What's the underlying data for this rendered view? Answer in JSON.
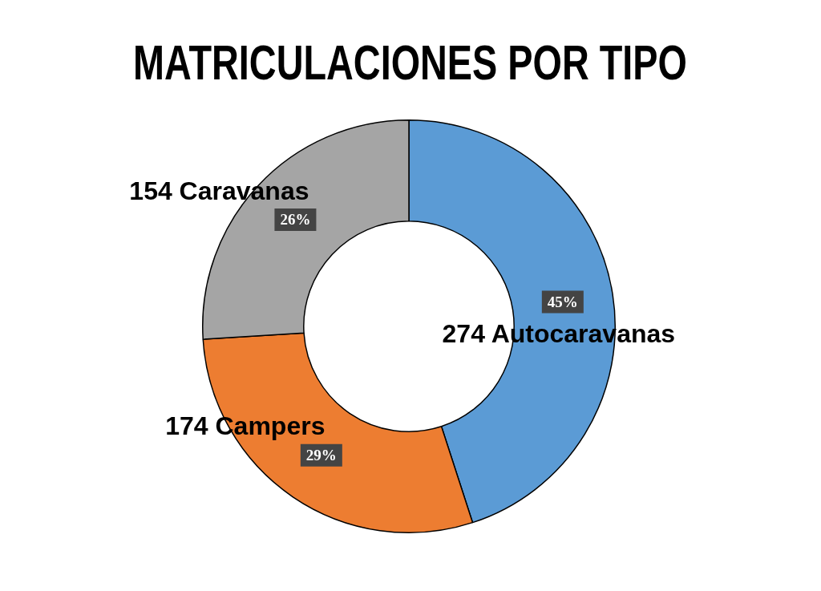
{
  "chart_data": {
    "type": "donut",
    "title": "MATRICULACIONES POR TIPO",
    "categories": [
      "274 Autocaravanas",
      "174 Campers",
      "154 Caravanas"
    ],
    "values": [
      45,
      29,
      26
    ],
    "colors": [
      "#5b9bd5",
      "#ed7d31",
      "#a5a5a5"
    ],
    "value_labels": [
      "45%",
      "29%",
      "26%"
    ],
    "legend": false
  }
}
